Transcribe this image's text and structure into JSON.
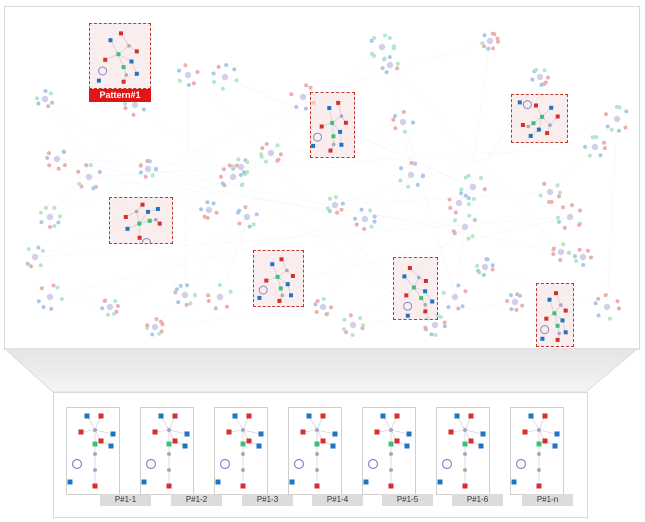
{
  "pattern": {
    "label": "Pattern#1"
  },
  "instances": [
    {
      "label": "P#1-1"
    },
    {
      "label": "P#1-2"
    },
    {
      "label": "P#1-3"
    },
    {
      "label": "P#1-4"
    },
    {
      "label": "P#1-5"
    },
    {
      "label": "P#1-6"
    },
    {
      "label": "P#1-n"
    }
  ],
  "colors": {
    "red": "#d62d2d",
    "blue": "#1f74c4",
    "green": "#3cc07a",
    "purple": "#8a86c8",
    "gray": "#a9a8c2",
    "highlight": "#e01515"
  }
}
